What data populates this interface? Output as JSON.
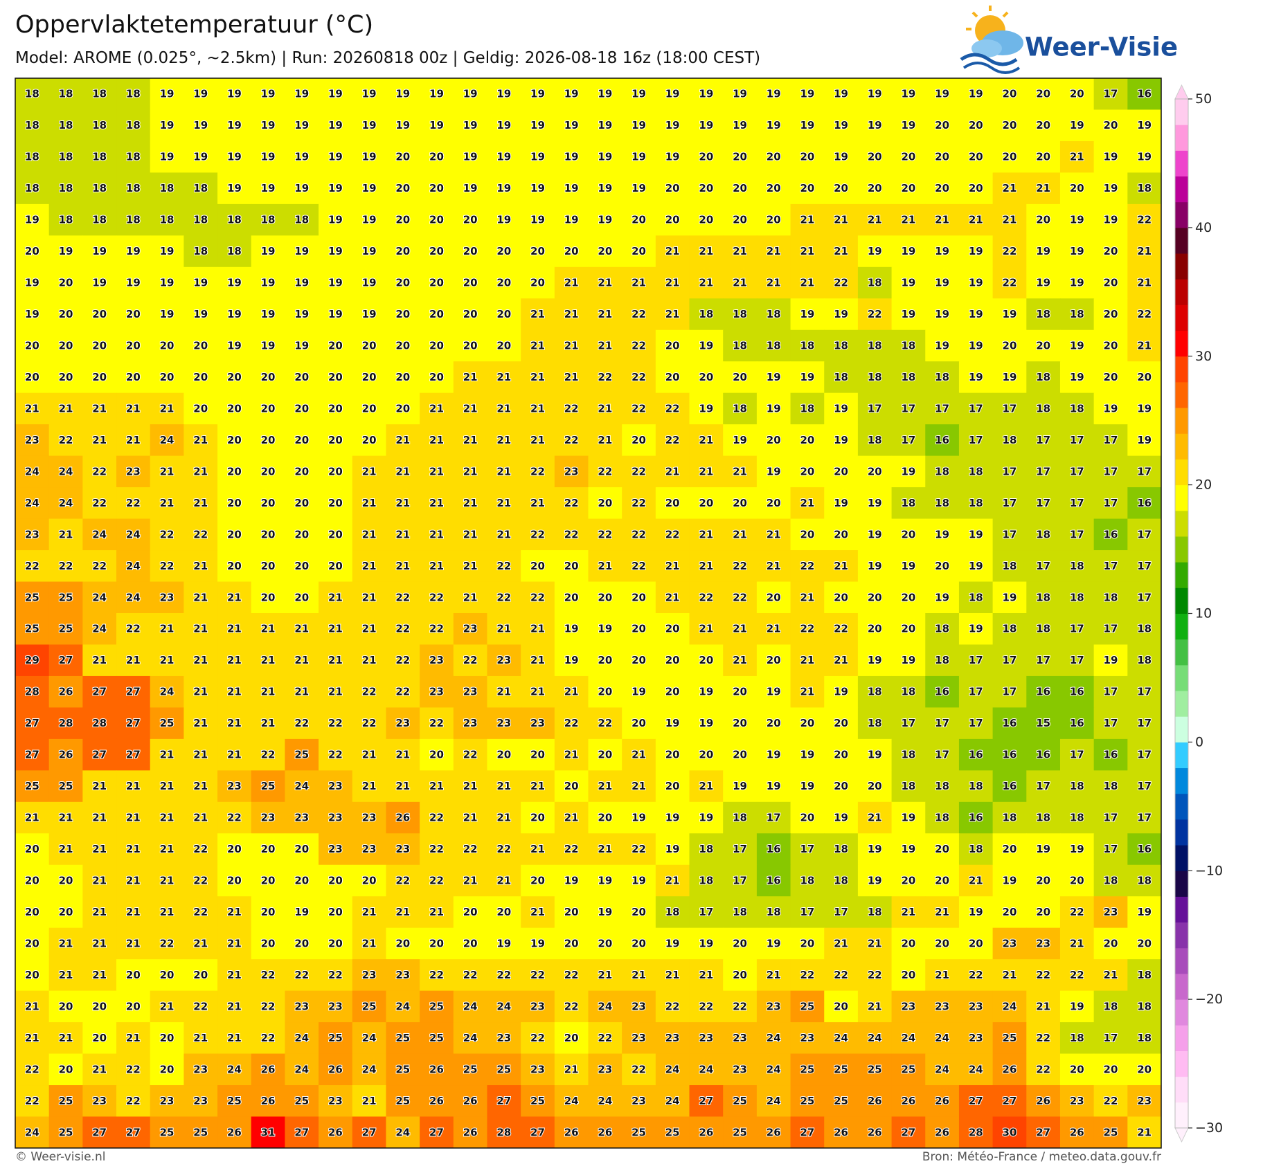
{
  "header": {
    "title": "Oppervlaktetemperatuur (°C)",
    "subtitle": "Model: AROME (0.025°, ~2.5km)  |  Run: 20260818 00z  |  Geldig: 2026-08-18 16z (18:00 CEST)",
    "logo": "Weer-Visie"
  },
  "map": {
    "values": [
      [
        18,
        18,
        18,
        18,
        19,
        19,
        19,
        19,
        19,
        19,
        19,
        19,
        19,
        19,
        19,
        19,
        19,
        19,
        19,
        19,
        19,
        19,
        19,
        19,
        19,
        19,
        19,
        19,
        19,
        20,
        20,
        20,
        17,
        16
      ],
      [
        18,
        18,
        18,
        18,
        19,
        19,
        19,
        19,
        19,
        19,
        19,
        19,
        19,
        19,
        19,
        19,
        19,
        19,
        19,
        19,
        19,
        19,
        19,
        19,
        19,
        19,
        19,
        20,
        20,
        20,
        20,
        19,
        20,
        19
      ],
      [
        18,
        18,
        18,
        18,
        19,
        19,
        19,
        19,
        19,
        19,
        19,
        20,
        20,
        19,
        19,
        19,
        19,
        19,
        19,
        19,
        20,
        20,
        20,
        20,
        19,
        20,
        20,
        20,
        20,
        20,
        20,
        21,
        19,
        19
      ],
      [
        18,
        18,
        18,
        18,
        18,
        18,
        19,
        19,
        19,
        19,
        19,
        20,
        20,
        19,
        19,
        19,
        19,
        19,
        19,
        20,
        20,
        20,
        20,
        20,
        20,
        20,
        20,
        20,
        20,
        21,
        21,
        20,
        19,
        18
      ],
      [
        19,
        18,
        18,
        18,
        18,
        18,
        18,
        18,
        18,
        19,
        19,
        20,
        20,
        20,
        19,
        19,
        19,
        19,
        20,
        20,
        20,
        20,
        20,
        21,
        21,
        21,
        21,
        21,
        21,
        21,
        20,
        19,
        19,
        22
      ],
      [
        20,
        19,
        19,
        19,
        19,
        18,
        18,
        19,
        19,
        19,
        19,
        20,
        20,
        20,
        20,
        20,
        20,
        20,
        20,
        21,
        21,
        21,
        21,
        21,
        21,
        19,
        19,
        19,
        19,
        22,
        19,
        19,
        20,
        21
      ],
      [
        19,
        20,
        19,
        19,
        19,
        19,
        19,
        19,
        19,
        19,
        19,
        20,
        20,
        20,
        20,
        20,
        21,
        21,
        21,
        21,
        21,
        21,
        21,
        21,
        22,
        18,
        19,
        19,
        19,
        22,
        19,
        19,
        20,
        21
      ],
      [
        19,
        20,
        20,
        20,
        19,
        19,
        19,
        19,
        19,
        19,
        19,
        20,
        20,
        20,
        20,
        21,
        21,
        21,
        22,
        21,
        18,
        18,
        18,
        19,
        19,
        22,
        19,
        19,
        19,
        19,
        18,
        18,
        20,
        22
      ],
      [
        20,
        20,
        20,
        20,
        20,
        20,
        19,
        19,
        19,
        20,
        20,
        20,
        20,
        20,
        20,
        21,
        21,
        21,
        22,
        20,
        19,
        18,
        18,
        18,
        18,
        18,
        18,
        19,
        19,
        20,
        20,
        19,
        20,
        21
      ],
      [
        20,
        20,
        20,
        20,
        20,
        20,
        20,
        20,
        20,
        20,
        20,
        20,
        20,
        21,
        21,
        21,
        21,
        22,
        22,
        20,
        20,
        20,
        19,
        19,
        18,
        18,
        18,
        18,
        19,
        19,
        18,
        19,
        20,
        20
      ],
      [
        21,
        21,
        21,
        21,
        21,
        20,
        20,
        20,
        20,
        20,
        20,
        20,
        21,
        21,
        21,
        21,
        22,
        21,
        22,
        22,
        19,
        18,
        19,
        18,
        19,
        17,
        17,
        17,
        17,
        17,
        18,
        18,
        19,
        19
      ],
      [
        23,
        22,
        21,
        21,
        24,
        21,
        20,
        20,
        20,
        20,
        20,
        21,
        21,
        21,
        21,
        21,
        22,
        21,
        20,
        22,
        21,
        19,
        20,
        20,
        19,
        18,
        17,
        16,
        17,
        18,
        17,
        17,
        17,
        19
      ],
      [
        24,
        24,
        22,
        23,
        21,
        21,
        20,
        20,
        20,
        20,
        21,
        21,
        21,
        21,
        21,
        22,
        23,
        22,
        22,
        21,
        21,
        21,
        19,
        20,
        20,
        20,
        19,
        18,
        18,
        17,
        17,
        17,
        17,
        17
      ],
      [
        24,
        24,
        22,
        22,
        21,
        21,
        20,
        20,
        20,
        20,
        21,
        21,
        21,
        21,
        21,
        21,
        22,
        20,
        22,
        20,
        20,
        20,
        20,
        21,
        19,
        19,
        18,
        18,
        18,
        17,
        17,
        17,
        17,
        16
      ],
      [
        23,
        21,
        24,
        24,
        22,
        22,
        20,
        20,
        20,
        20,
        21,
        21,
        21,
        21,
        21,
        22,
        22,
        22,
        22,
        22,
        21,
        21,
        21,
        20,
        20,
        19,
        20,
        19,
        19,
        17,
        18,
        17,
        16,
        17
      ],
      [
        22,
        22,
        22,
        24,
        22,
        21,
        20,
        20,
        20,
        20,
        21,
        21,
        21,
        21,
        22,
        20,
        20,
        21,
        22,
        21,
        21,
        22,
        21,
        22,
        21,
        19,
        19,
        20,
        19,
        18,
        17,
        18,
        17,
        17
      ],
      [
        25,
        25,
        24,
        24,
        23,
        21,
        21,
        20,
        20,
        21,
        21,
        22,
        22,
        21,
        22,
        22,
        20,
        20,
        20,
        21,
        22,
        22,
        20,
        21,
        20,
        20,
        20,
        19,
        18,
        19,
        18,
        18,
        18,
        17
      ],
      [
        25,
        25,
        24,
        22,
        21,
        21,
        21,
        21,
        21,
        21,
        21,
        22,
        22,
        23,
        21,
        21,
        19,
        19,
        20,
        20,
        21,
        21,
        21,
        22,
        22,
        20,
        20,
        18,
        19,
        18,
        18,
        17,
        17,
        18
      ],
      [
        29,
        27,
        21,
        21,
        21,
        21,
        21,
        21,
        21,
        21,
        21,
        22,
        23,
        22,
        23,
        21,
        19,
        20,
        20,
        20,
        20,
        21,
        20,
        21,
        21,
        19,
        19,
        18,
        17,
        17,
        17,
        17,
        19,
        18
      ],
      [
        28,
        26,
        27,
        27,
        24,
        21,
        21,
        21,
        21,
        21,
        22,
        22,
        23,
        23,
        21,
        21,
        21,
        20,
        19,
        20,
        19,
        20,
        19,
        21,
        19,
        18,
        18,
        16,
        17,
        17,
        16,
        16,
        17,
        17
      ],
      [
        27,
        28,
        28,
        27,
        25,
        21,
        21,
        21,
        22,
        22,
        22,
        23,
        22,
        23,
        23,
        23,
        22,
        22,
        20,
        19,
        19,
        20,
        20,
        20,
        20,
        18,
        17,
        17,
        17,
        16,
        15,
        16,
        17,
        17
      ],
      [
        27,
        26,
        27,
        27,
        21,
        21,
        21,
        22,
        25,
        22,
        21,
        21,
        20,
        22,
        20,
        20,
        21,
        20,
        21,
        20,
        20,
        20,
        19,
        19,
        20,
        19,
        18,
        17,
        16,
        16,
        16,
        17,
        16,
        17
      ],
      [
        25,
        25,
        21,
        21,
        21,
        21,
        23,
        25,
        24,
        23,
        21,
        21,
        21,
        21,
        21,
        21,
        20,
        21,
        21,
        20,
        21,
        19,
        19,
        19,
        20,
        20,
        18,
        18,
        18,
        16,
        17,
        18,
        18,
        17
      ],
      [
        21,
        21,
        21,
        21,
        21,
        21,
        22,
        23,
        23,
        23,
        23,
        26,
        22,
        21,
        21,
        20,
        21,
        20,
        19,
        19,
        19,
        18,
        17,
        20,
        19,
        21,
        19,
        18,
        16,
        18,
        18,
        18,
        17,
        17
      ],
      [
        20,
        21,
        21,
        21,
        21,
        22,
        20,
        20,
        20,
        23,
        23,
        23,
        22,
        22,
        22,
        21,
        22,
        21,
        22,
        19,
        18,
        17,
        16,
        17,
        18,
        19,
        19,
        20,
        18,
        20,
        19,
        19,
        17,
        16
      ],
      [
        20,
        20,
        21,
        21,
        21,
        22,
        20,
        20,
        20,
        20,
        20,
        22,
        22,
        21,
        21,
        20,
        19,
        19,
        19,
        21,
        18,
        17,
        16,
        18,
        18,
        19,
        20,
        20,
        21,
        19,
        20,
        20,
        18,
        18
      ],
      [
        20,
        20,
        21,
        21,
        21,
        22,
        21,
        20,
        19,
        20,
        21,
        21,
        21,
        20,
        20,
        21,
        20,
        19,
        20,
        18,
        17,
        18,
        18,
        17,
        17,
        18,
        21,
        21,
        19,
        20,
        20,
        22,
        23,
        19
      ],
      [
        20,
        21,
        21,
        21,
        22,
        21,
        21,
        20,
        20,
        20,
        21,
        20,
        20,
        20,
        19,
        19,
        20,
        20,
        20,
        19,
        19,
        20,
        19,
        20,
        21,
        21,
        20,
        20,
        20,
        23,
        23,
        21,
        20,
        20
      ],
      [
        20,
        21,
        21,
        20,
        20,
        20,
        21,
        22,
        22,
        22,
        23,
        23,
        22,
        22,
        22,
        22,
        22,
        21,
        21,
        21,
        21,
        20,
        21,
        22,
        22,
        22,
        20,
        21,
        22,
        21,
        22,
        22,
        21,
        18
      ],
      [
        21,
        20,
        20,
        20,
        21,
        22,
        21,
        22,
        23,
        23,
        25,
        24,
        25,
        24,
        24,
        23,
        22,
        24,
        23,
        22,
        22,
        22,
        23,
        25,
        20,
        21,
        23,
        23,
        23,
        24,
        21,
        19,
        18,
        18
      ],
      [
        21,
        21,
        20,
        21,
        20,
        21,
        21,
        22,
        24,
        25,
        24,
        25,
        25,
        24,
        23,
        22,
        20,
        22,
        23,
        23,
        23,
        23,
        24,
        23,
        24,
        24,
        24,
        24,
        23,
        25,
        22,
        18,
        17,
        18
      ],
      [
        22,
        20,
        21,
        22,
        20,
        23,
        24,
        26,
        24,
        26,
        24,
        25,
        26,
        25,
        25,
        23,
        21,
        23,
        22,
        24,
        24,
        23,
        24,
        25,
        25,
        25,
        25,
        24,
        24,
        26,
        22,
        20,
        20,
        20
      ],
      [
        22,
        25,
        23,
        22,
        23,
        23,
        25,
        26,
        25,
        23,
        21,
        25,
        26,
        26,
        27,
        25,
        24,
        24,
        23,
        24,
        27,
        25,
        24,
        25,
        25,
        26,
        26,
        26,
        27,
        27,
        26,
        23,
        22,
        23
      ],
      [
        24,
        25,
        27,
        27,
        25,
        25,
        26,
        31,
        27,
        26,
        27,
        24,
        27,
        26,
        28,
        27,
        26,
        26,
        25,
        25,
        26,
        25,
        26,
        27,
        26,
        26,
        27,
        26,
        28,
        30,
        27,
        26,
        25,
        21
      ]
    ],
    "colorbar": {
      "lim": [
        -30,
        50
      ],
      "ticks": [
        50,
        40,
        30,
        20,
        10,
        0,
        {
          "value": -10,
          "label": "−10"
        },
        {
          "value": -20,
          "label": "−20"
        },
        {
          "value": -30,
          "label": "−30"
        }
      ],
      "colors": [
        "#fff0fc",
        "#ffddf8",
        "#ffbbf2",
        "#f5a0ea",
        "#e088de",
        "#c868cc",
        "#a84cbb",
        "#8833aa",
        "#661199",
        "#1a0648",
        "#001166",
        "#0033a0",
        "#0055bb",
        "#0088dd",
        "#33ccff",
        "#ccffe0",
        "#a0eea0",
        "#77dd77",
        "#44c044",
        "#11b011",
        "#008800",
        "#33aa00",
        "#88c800",
        "#ccdd00",
        "#ffff00",
        "#ffdd00",
        "#ffbb00",
        "#ff9900",
        "#ff6600",
        "#ff4400",
        "#ff0000",
        "#dd0000",
        "#bb0000",
        "#880000",
        "#550022",
        "#880066",
        "#bb0099",
        "#ee44cc",
        "#ff99dd",
        "#ffccee"
      ]
    }
  },
  "footer": {
    "credit": "© Weer-visie.nl",
    "source": "Bron: Météo-France / meteo.data.gouv.fr"
  }
}
